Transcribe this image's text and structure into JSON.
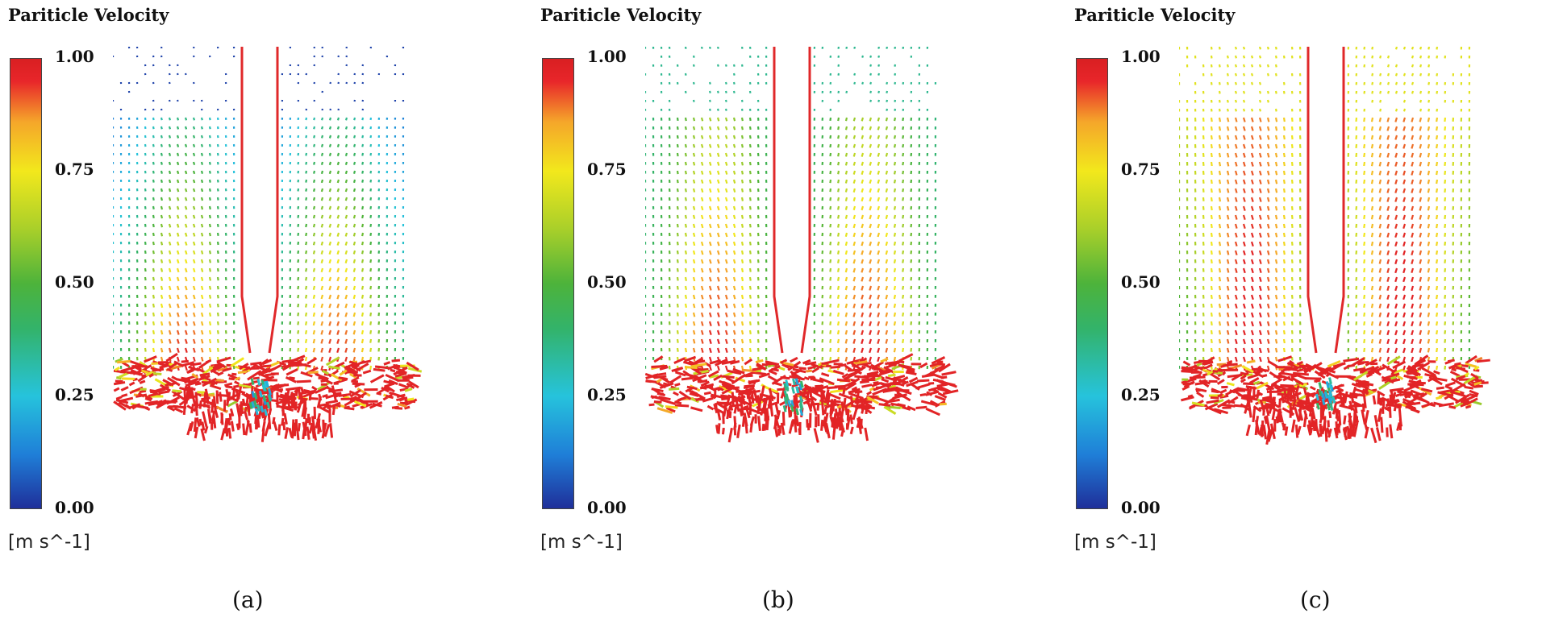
{
  "panels": [
    {
      "id": "a",
      "title": "Pariticle Velocity",
      "unit": "[m s^-1]",
      "caption": "(a)",
      "ticks": [
        "1.00",
        "0.75",
        "0.50",
        "0.25",
        "0.00"
      ],
      "top_level": 0.03
    },
    {
      "id": "b",
      "title": "Pariticle Velocity",
      "unit": "[m s^-1]",
      "caption": "(b)",
      "ticks": [
        "1.00",
        "0.75",
        "0.50",
        "0.25",
        "0.00"
      ],
      "top_level": 0.35
    },
    {
      "id": "c",
      "title": "Pariticle Velocity",
      "unit": "[m s^-1]",
      "caption": "(c)",
      "ticks": [
        "1.00",
        "0.75",
        "0.50",
        "0.25",
        "0.00"
      ],
      "top_level": 0.72
    }
  ],
  "colors": {
    "scale": [
      "#1f2f9a",
      "#1f7fd8",
      "#26c3dc",
      "#33b36a",
      "#4db33b",
      "#a8cf2a",
      "#f2e81c",
      "#f5a62a",
      "#e8262a"
    ],
    "shaft": "#e0282a"
  }
}
